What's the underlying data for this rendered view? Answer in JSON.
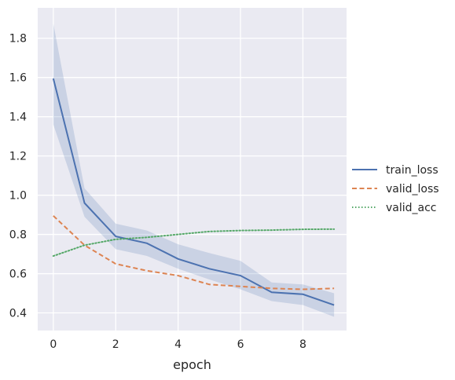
{
  "chart_data": {
    "type": "line",
    "title": "",
    "xlabel": "epoch",
    "ylabel": "",
    "x": [
      0,
      1,
      2,
      3,
      4,
      5,
      6,
      7,
      8,
      9
    ],
    "xlim": [
      -0.5,
      9.4
    ],
    "ylim": [
      0.31,
      1.955
    ],
    "xticks": [
      0,
      2,
      4,
      6,
      8
    ],
    "yticks": [
      0.4,
      0.6,
      0.8,
      1.0,
      1.2,
      1.4,
      1.6,
      1.8
    ],
    "xtick_labels": [
      "0",
      "2",
      "4",
      "6",
      "8"
    ],
    "ytick_labels": [
      "0.4",
      "0.6",
      "0.8",
      "1.0",
      "1.2",
      "1.4",
      "1.6",
      "1.8"
    ],
    "grid": true,
    "background": "#eaeaf2",
    "legend_position": "right",
    "series": [
      {
        "name": "train_loss",
        "color": "#4c72b0",
        "dash": "solid",
        "values": [
          1.595,
          0.96,
          0.79,
          0.755,
          0.675,
          0.625,
          0.59,
          0.505,
          0.495,
          0.44
        ],
        "ci_lower": [
          1.36,
          0.89,
          0.725,
          0.69,
          0.625,
          0.57,
          0.52,
          0.46,
          0.44,
          0.38
        ],
        "ci_upper": [
          1.875,
          1.035,
          0.855,
          0.82,
          0.75,
          0.705,
          0.665,
          0.555,
          0.545,
          0.5
        ]
      },
      {
        "name": "valid_loss",
        "color": "#dd8452",
        "dash": "dashed",
        "values": [
          0.895,
          0.745,
          0.65,
          0.615,
          0.59,
          0.545,
          0.535,
          0.525,
          0.52,
          0.525
        ]
      },
      {
        "name": "valid_acc",
        "color": "#55a868",
        "dash": "dotted",
        "values": [
          0.69,
          0.745,
          0.775,
          0.785,
          0.8,
          0.815,
          0.82,
          0.822,
          0.826,
          0.827
        ]
      }
    ]
  }
}
